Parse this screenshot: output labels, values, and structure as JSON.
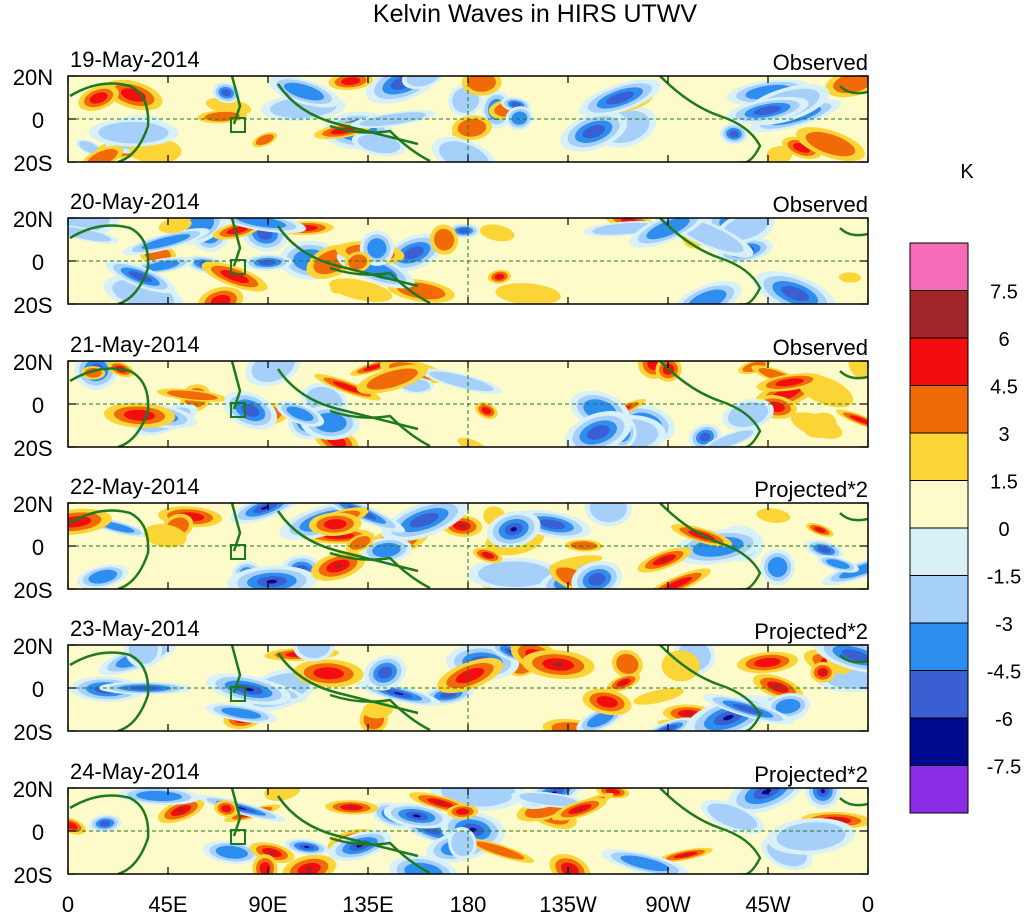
{
  "title": "Kelvin Waves in HIRS UTWV",
  "lat_labels": [
    "20N",
    "0",
    "20S"
  ],
  "lon_labels": [
    "0",
    "45E",
    "90E",
    "135E",
    "180",
    "135W",
    "90W",
    "45W",
    "0"
  ],
  "colorbar": {
    "unit": "K",
    "levels": [
      "7.5",
      "6",
      "4.5",
      "3",
      "1.5",
      "0",
      "-1.5",
      "-3",
      "-4.5",
      "-6",
      "-7.5"
    ],
    "colors": [
      "#f56bb8",
      "#a0262a",
      "#f40d0f",
      "#f06a08",
      "#fbd436",
      "#fdfbca",
      "#d8f1f7",
      "#a6cff9",
      "#2e8ef0",
      "#3a5fd2",
      "#010a8e",
      "#8a2be6"
    ]
  },
  "panels": [
    {
      "date": "19-May-2014",
      "type": "Observed"
    },
    {
      "date": "20-May-2014",
      "type": "Observed"
    },
    {
      "date": "21-May-2014",
      "type": "Observed"
    },
    {
      "date": "22-May-2014",
      "type": "Projected*2"
    },
    {
      "date": "23-May-2014",
      "type": "Projected*2"
    },
    {
      "date": "24-May-2014",
      "type": "Projected*2"
    }
  ]
}
